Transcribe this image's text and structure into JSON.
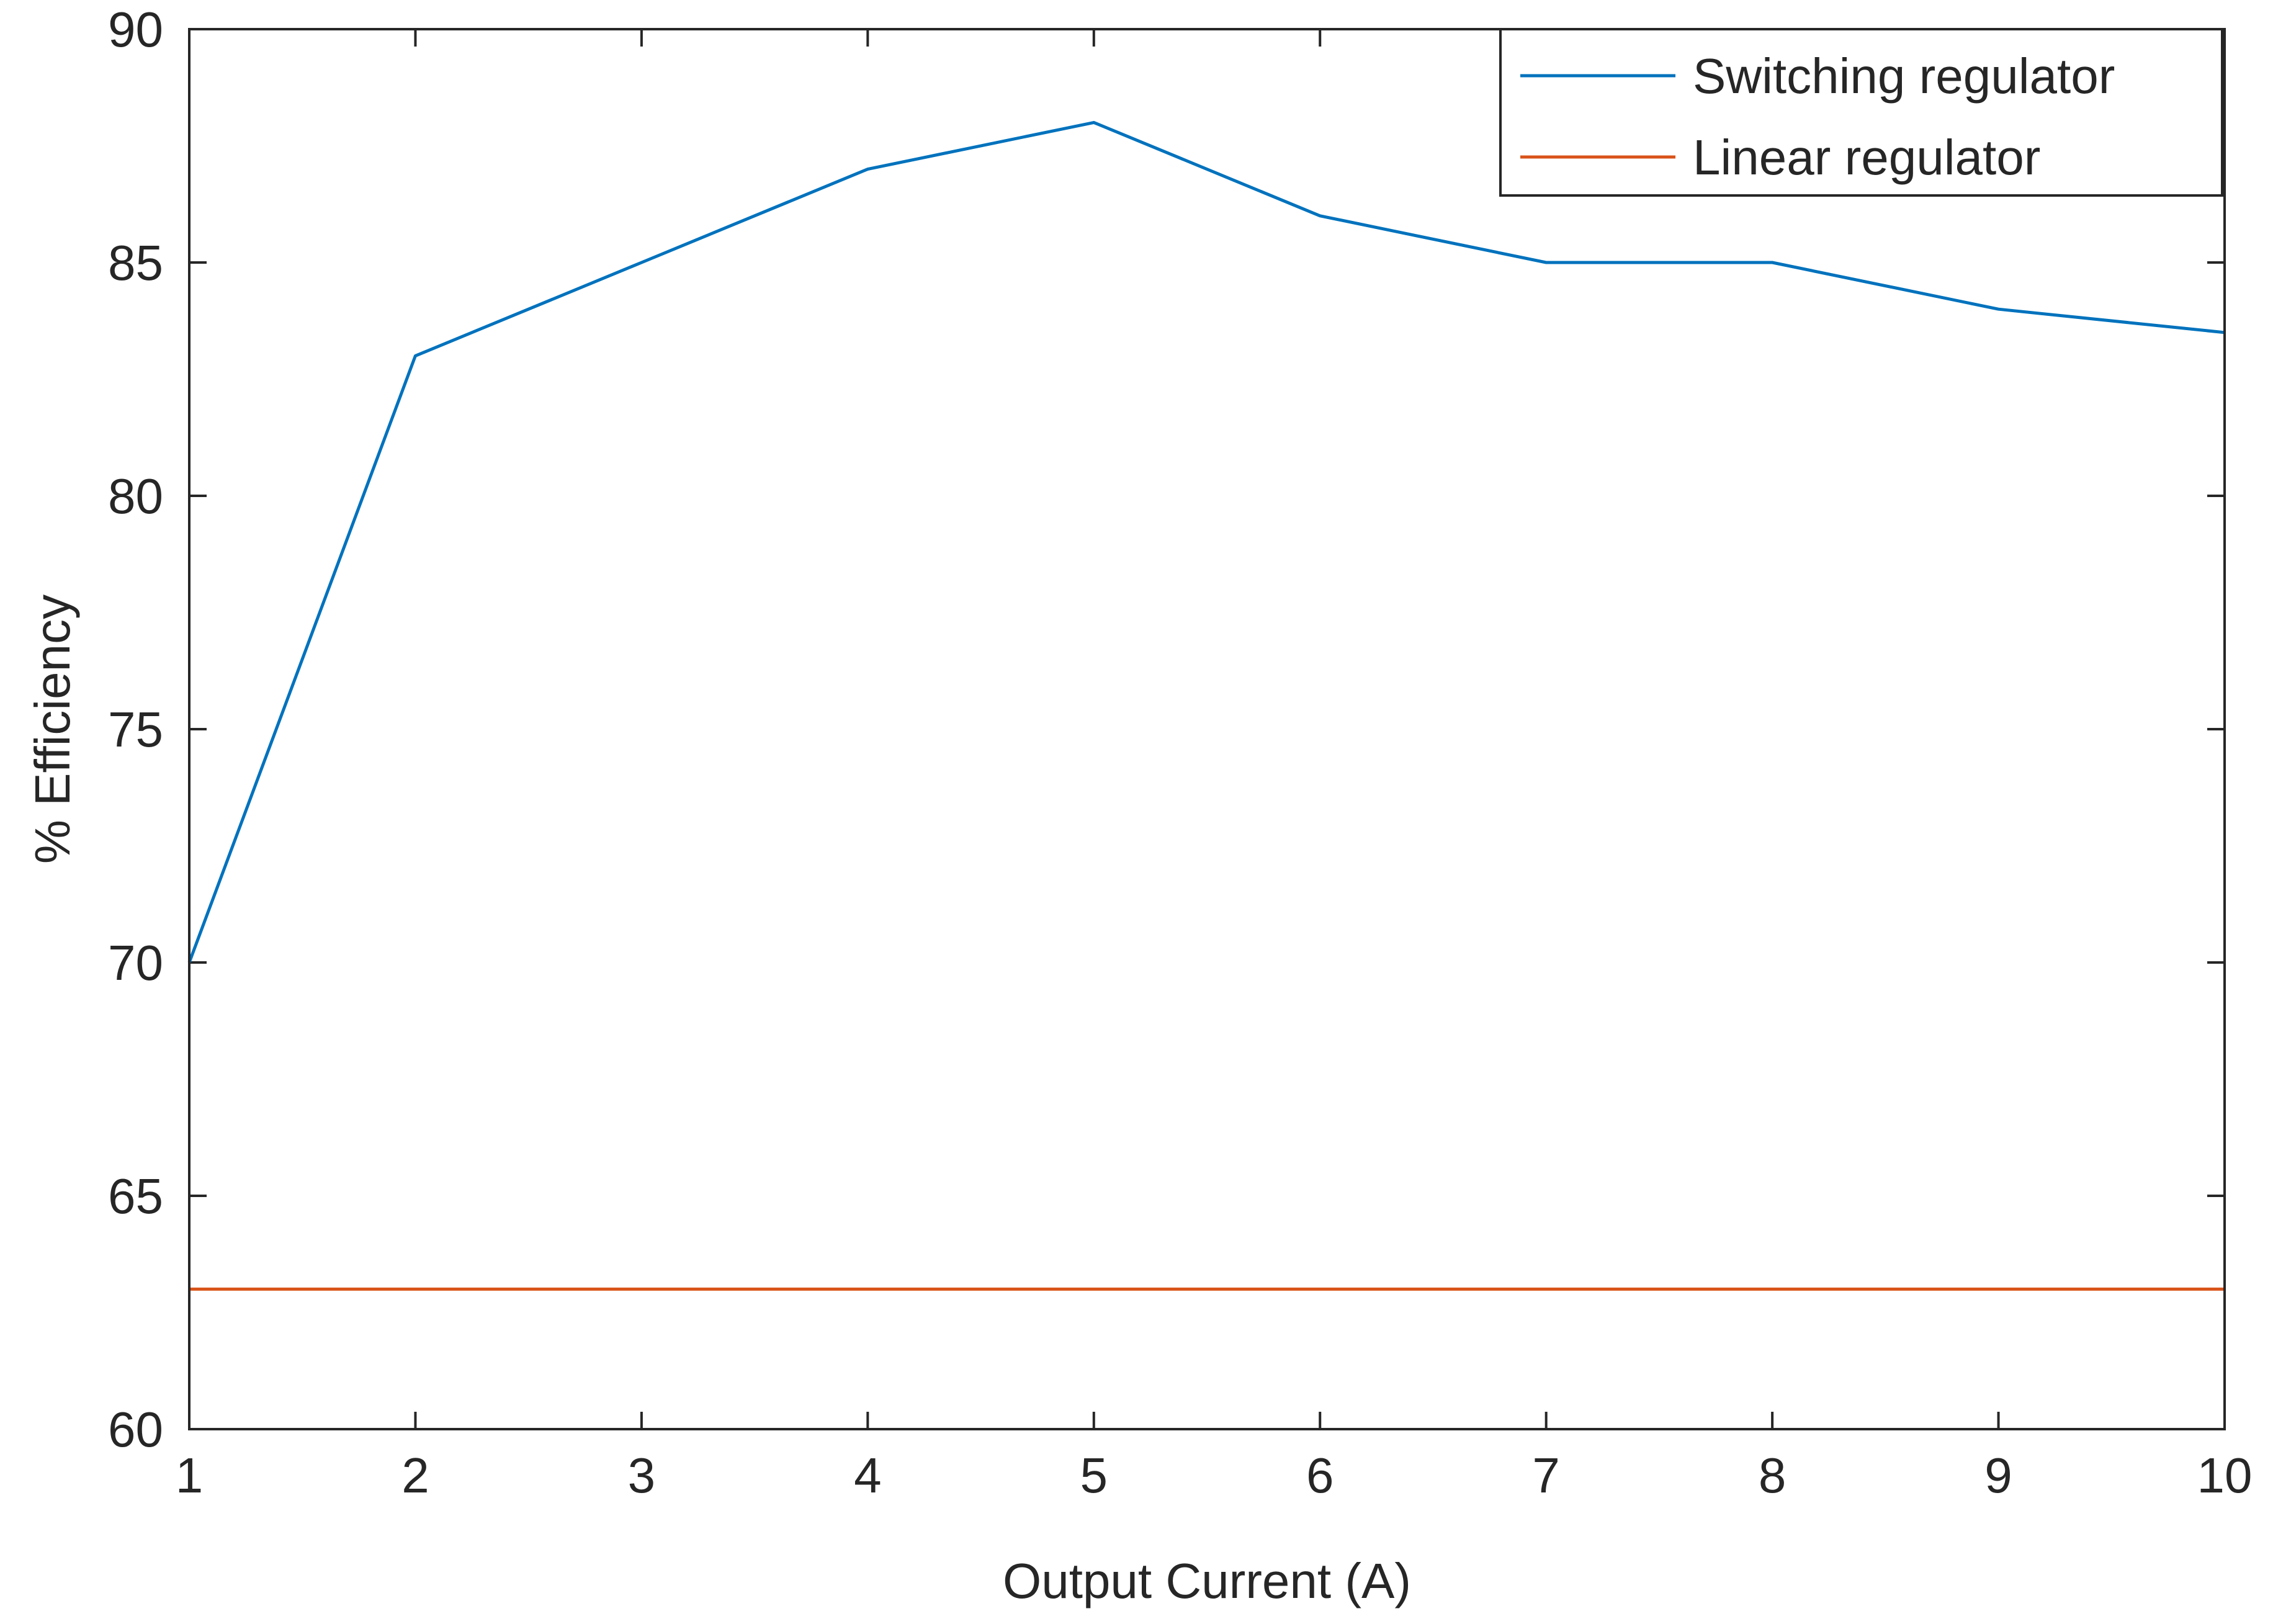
{
  "colors": {
    "background": "#ffffff",
    "axis": "#262626",
    "switching": "#0072bd",
    "linear": "#d95319"
  },
  "chart_data": {
    "type": "line",
    "title": "",
    "xlabel": "Output Current (A)",
    "ylabel": "% Efficiency",
    "xlim": [
      1,
      10
    ],
    "ylim": [
      60,
      90
    ],
    "xticks": [
      1,
      2,
      3,
      4,
      5,
      6,
      7,
      8,
      9,
      10
    ],
    "yticks": [
      60,
      65,
      70,
      75,
      80,
      85,
      90
    ],
    "x": [
      1,
      2,
      3,
      4,
      5,
      6,
      7,
      8,
      9,
      10
    ],
    "grid": false,
    "box": true,
    "legend_position": "top-right",
    "series": [
      {
        "name": "Switching regulator",
        "color": "#0072bd",
        "values": [
          70,
          83,
          85,
          87,
          88,
          86,
          85,
          85,
          84,
          83.5
        ]
      },
      {
        "name": "Linear regulator",
        "color": "#d95319",
        "values": [
          63,
          63,
          63,
          63,
          63,
          63,
          63,
          63,
          63,
          63
        ]
      }
    ]
  }
}
